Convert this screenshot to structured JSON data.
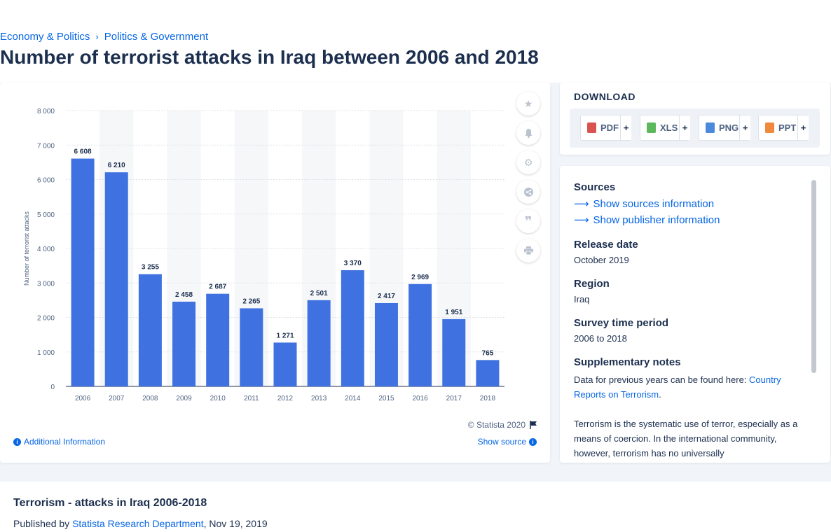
{
  "breadcrumb": {
    "item1": "Economy & Politics",
    "separator": "›",
    "item2": "Politics & Government"
  },
  "page_title": "Number of terrorist attacks in Iraq between 2006 and 2018",
  "chart": {
    "copyright": "© Statista 2020",
    "additional_info": "Additional Information",
    "show_source": "Show source",
    "tools": [
      "star-icon",
      "bell-icon",
      "gear-icon",
      "share-icon",
      "quote-icon",
      "print-icon"
    ]
  },
  "chart_data": {
    "type": "bar",
    "ylabel": "Number of terrorist attacks",
    "xlabel": "",
    "ylim": [
      0,
      8000
    ],
    "yticks": [
      0,
      1000,
      2000,
      3000,
      4000,
      5000,
      6000,
      7000,
      8000
    ],
    "ytick_labels": [
      "0",
      "1 000",
      "2 000",
      "3 000",
      "4 000",
      "5 000",
      "6 000",
      "7 000",
      "8 000"
    ],
    "categories": [
      "2006",
      "2007",
      "2008",
      "2009",
      "2010",
      "2011",
      "2012",
      "2013",
      "2014",
      "2015",
      "2016",
      "2017",
      "2018"
    ],
    "values": [
      6608,
      6210,
      3255,
      2458,
      2687,
      2265,
      1271,
      2501,
      3370,
      2417,
      2969,
      1951,
      765
    ],
    "value_labels": [
      "6 608",
      "6 210",
      "3 255",
      "2 458",
      "2 687",
      "2 265",
      "1 271",
      "2 501",
      "3 370",
      "2 417",
      "2 969",
      "1 951",
      "765"
    ],
    "bar_color": "#3f72e0",
    "grid": true
  },
  "download": {
    "title": "DOWNLOAD",
    "buttons": [
      {
        "label": "PDF",
        "plus": "+",
        "color": "#d9534f"
      },
      {
        "label": "XLS",
        "plus": "+",
        "color": "#5cb85c"
      },
      {
        "label": "PNG",
        "plus": "+",
        "color": "#4a89dc"
      },
      {
        "label": "PPT",
        "plus": "+",
        "color": "#f0883e"
      }
    ]
  },
  "sources": {
    "heading": "Sources",
    "show_sources": "Show sources information",
    "show_publisher": "Show publisher information",
    "release_heading": "Release date",
    "release_value": "October 2019",
    "region_heading": "Region",
    "region_value": "Iraq",
    "survey_heading": "Survey time period",
    "survey_value": "2006 to 2018",
    "supp_heading": "Supplementary notes",
    "supp_text": "Data for previous years can be found here: ",
    "supp_link": "Country Reports on Terrorism",
    "supp_end": ".",
    "terrorism_text": "Terrorism is the systematic use of terror, especially as a means of coercion. In the international community, however, terrorism has no universally"
  },
  "bottom": {
    "title": "Terrorism - attacks in Iraq 2006-2018",
    "published_by": "Published by ",
    "publisher": "Statista Research Department",
    "date": ", Nov 19, 2019"
  }
}
